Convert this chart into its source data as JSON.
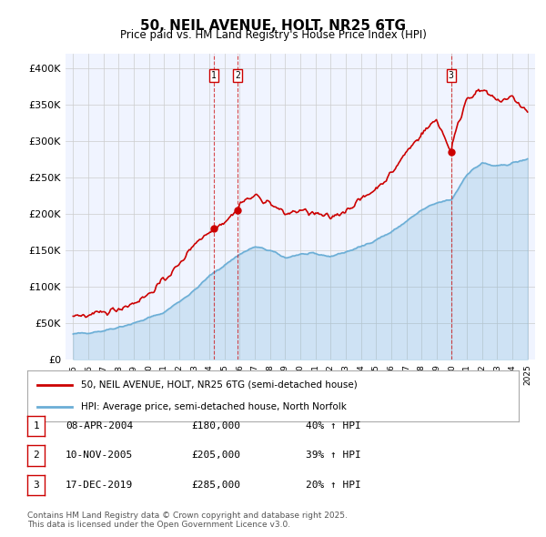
{
  "title": "50, NEIL AVENUE, HOLT, NR25 6TG",
  "subtitle": "Price paid vs. HM Land Registry's House Price Index (HPI)",
  "ylabel": "",
  "ylim": [
    0,
    420000
  ],
  "yticks": [
    0,
    50000,
    100000,
    150000,
    200000,
    250000,
    300000,
    350000,
    400000
  ],
  "ytick_labels": [
    "£0",
    "£50K",
    "£100K",
    "£150K",
    "£200K",
    "£250K",
    "£300K",
    "£350K",
    "£400K"
  ],
  "xlim_start": 1994.5,
  "xlim_end": 2025.5,
  "hpi_color": "#6baed6",
  "price_color": "#cc0000",
  "background_color": "#f0f4ff",
  "grid_color": "#cccccc",
  "sale1_x": 2004.27,
  "sale1_y": 180000,
  "sale2_x": 2005.86,
  "sale2_y": 205000,
  "sale3_x": 2019.96,
  "sale3_y": 285000,
  "vline_color": "#cc0000",
  "legend_label_red": "50, NEIL AVENUE, HOLT, NR25 6TG (semi-detached house)",
  "legend_label_blue": "HPI: Average price, semi-detached house, North Norfolk",
  "table_rows": [
    {
      "num": "1",
      "date": "08-APR-2004",
      "price": "£180,000",
      "hpi": "40% ↑ HPI"
    },
    {
      "num": "2",
      "date": "10-NOV-2005",
      "price": "£205,000",
      "hpi": "39% ↑ HPI"
    },
    {
      "num": "3",
      "date": "17-DEC-2019",
      "price": "£285,000",
      "hpi": "20% ↑ HPI"
    }
  ],
  "footnote": "Contains HM Land Registry data © Crown copyright and database right 2025.\nThis data is licensed under the Open Government Licence v3.0."
}
